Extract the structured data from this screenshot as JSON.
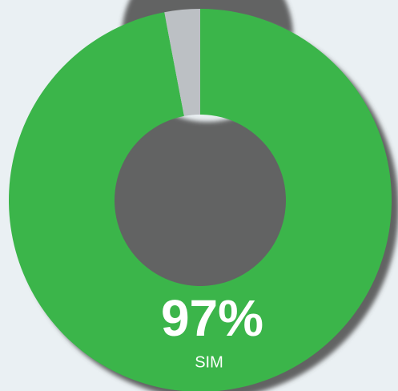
{
  "chart_data": {
    "type": "pie",
    "donut": true,
    "categories": [
      "SIM",
      null
    ],
    "values": [
      97,
      3
    ],
    "value_labels": [
      "97%",
      null
    ],
    "colors": [
      "#3bb54a",
      "#bcc0c4"
    ]
  }
}
